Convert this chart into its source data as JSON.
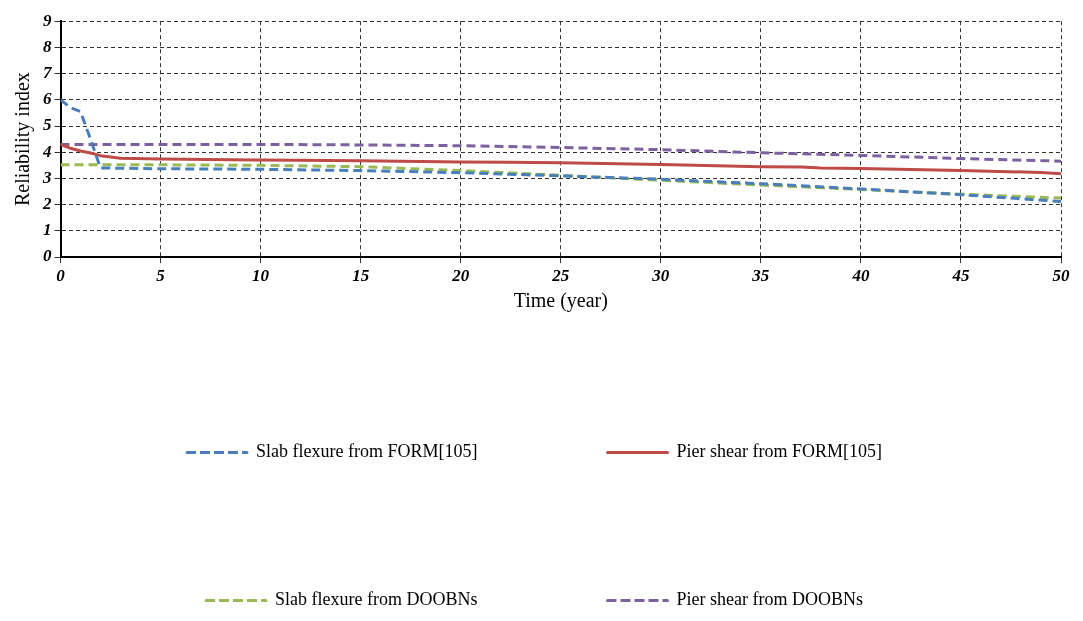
{
  "chart_data": {
    "type": "line",
    "xlabel": "Time (year)",
    "ylabel": "Reliability index",
    "xlim": [
      0,
      50
    ],
    "xticks": [
      0,
      5,
      10,
      15,
      20,
      25,
      30,
      35,
      40,
      45,
      50
    ],
    "ylim": [
      0,
      9
    ],
    "yticks": [
      0,
      1,
      2,
      3,
      4,
      5,
      6,
      7,
      8,
      9
    ],
    "grid": true,
    "legend": "bottom",
    "marker": "none",
    "series": [
      {
        "name": "Slab flexure from FORM[105]",
        "color": "#4a7ebb",
        "line_style": "dashed",
        "x": [
          0,
          0.5,
          1,
          1.5,
          2,
          5,
          10,
          15,
          20,
          25,
          30,
          35,
          40,
          45,
          50
        ],
        "values": [
          6.0,
          5.7,
          5.55,
          4.5,
          3.4,
          3.37,
          3.35,
          3.3,
          3.22,
          3.1,
          2.97,
          2.8,
          2.6,
          2.38,
          2.12
        ]
      },
      {
        "name": "Pier shear from FORM[105]",
        "color": "#be4b48",
        "line_style": "solid",
        "x": [
          0,
          0.5,
          1,
          1.5,
          2,
          3,
          5,
          10,
          15,
          20,
          25,
          30,
          35,
          37,
          38,
          40,
          45,
          49,
          50
        ],
        "values": [
          4.3,
          4.15,
          4.05,
          3.97,
          3.87,
          3.77,
          3.74,
          3.7,
          3.68,
          3.63,
          3.6,
          3.53,
          3.45,
          3.44,
          3.4,
          3.38,
          3.3,
          3.23,
          3.18
        ]
      },
      {
        "name": "Slab flexure from DOOBNs",
        "color": "#98b954",
        "line_style": "dashed",
        "x": [
          0,
          5,
          10,
          15,
          20,
          25,
          30,
          35,
          40,
          45,
          50
        ],
        "values": [
          3.52,
          3.52,
          3.5,
          3.45,
          3.3,
          3.12,
          2.93,
          2.75,
          2.58,
          2.4,
          2.25
        ]
      },
      {
        "name": "Pier shear from DOOBNs",
        "color": "#7d60a0",
        "line_style": "dashed",
        "x": [
          0,
          5,
          10,
          15,
          20,
          25,
          30,
          35,
          40,
          45,
          50
        ],
        "values": [
          4.3,
          4.3,
          4.3,
          4.28,
          4.25,
          4.18,
          4.1,
          3.98,
          3.88,
          3.76,
          3.66
        ]
      }
    ]
  }
}
